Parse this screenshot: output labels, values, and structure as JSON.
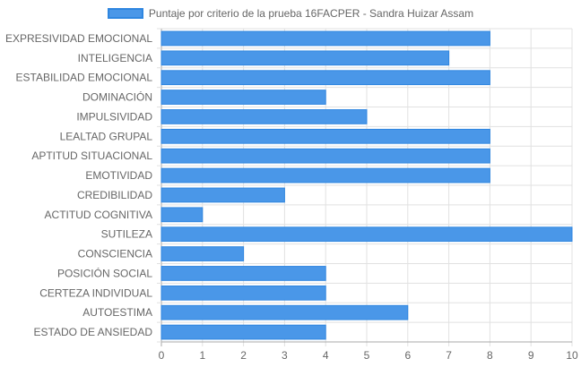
{
  "colors": {
    "bar_fill": "#4a97e8",
    "bar_border": "#2f86e0",
    "grid": "#e1e1e1",
    "axis": "#a8a8a8",
    "text": "#666666"
  },
  "chart_data": {
    "type": "bar",
    "orientation": "horizontal",
    "title": "",
    "xlabel": "",
    "ylabel": "",
    "legend_position": "top",
    "grid": true,
    "xlim": [
      0,
      10
    ],
    "x_ticks": [
      0,
      1,
      2,
      3,
      4,
      5,
      6,
      7,
      8,
      9,
      10
    ],
    "categories": [
      "EXPRESIVIDAD EMOCIONAL",
      "INTELIGENCIA",
      "ESTABILIDAD EMOCIONAL",
      "DOMINACIÓN",
      "IMPULSIVIDAD",
      "LEALTAD GRUPAL",
      "APTITUD SITUACIONAL",
      "EMOTIVIDAD",
      "CREDIBILIDAD",
      "ACTITUD COGNITIVA",
      "SUTILEZA",
      "CONSCIENCIA",
      "POSICIÓN SOCIAL",
      "CERTEZA INDIVIDUAL",
      "AUTOESTIMA",
      "ESTADO DE ANSIEDAD"
    ],
    "series": [
      {
        "name": "Puntaje por criterio de la prueba 16FACPER - Sandra Huizar Assam",
        "values": [
          8,
          7,
          8,
          4,
          5,
          8,
          8,
          8,
          3,
          1,
          10,
          2,
          4,
          4,
          6,
          4
        ]
      }
    ]
  }
}
